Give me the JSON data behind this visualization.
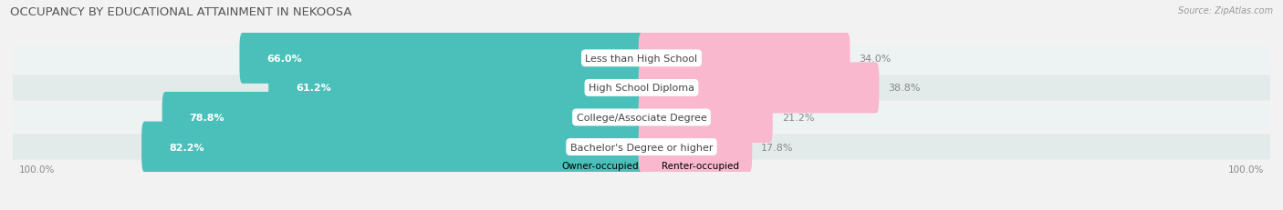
{
  "title": "OCCUPANCY BY EDUCATIONAL ATTAINMENT IN NEKOOSA",
  "source": "Source: ZipAtlas.com",
  "categories": [
    "Less than High School",
    "High School Diploma",
    "College/Associate Degree",
    "Bachelor's Degree or higher"
  ],
  "owner_pct": [
    66.0,
    61.2,
    78.8,
    82.2
  ],
  "renter_pct": [
    34.0,
    38.8,
    21.2,
    17.8
  ],
  "owner_color": "#4bbfb9",
  "renter_color": "#f47fa4",
  "renter_color_light": "#f9b8ce",
  "row_bg_even": "#edf2f2",
  "row_bg_odd": "#e2eaea",
  "label_bg": "#ffffff",
  "title_color": "#555555",
  "source_color": "#999999",
  "pct_label_owner": "#ffffff",
  "pct_label_renter": "#888888",
  "axis_label": "100.0%",
  "legend_owner": "Owner-occupied",
  "legend_renter": "Renter-occupied",
  "title_fontsize": 9.5,
  "bar_fontsize": 8,
  "cat_fontsize": 8,
  "figsize": [
    14.06,
    2.32
  ],
  "dpi": 100
}
